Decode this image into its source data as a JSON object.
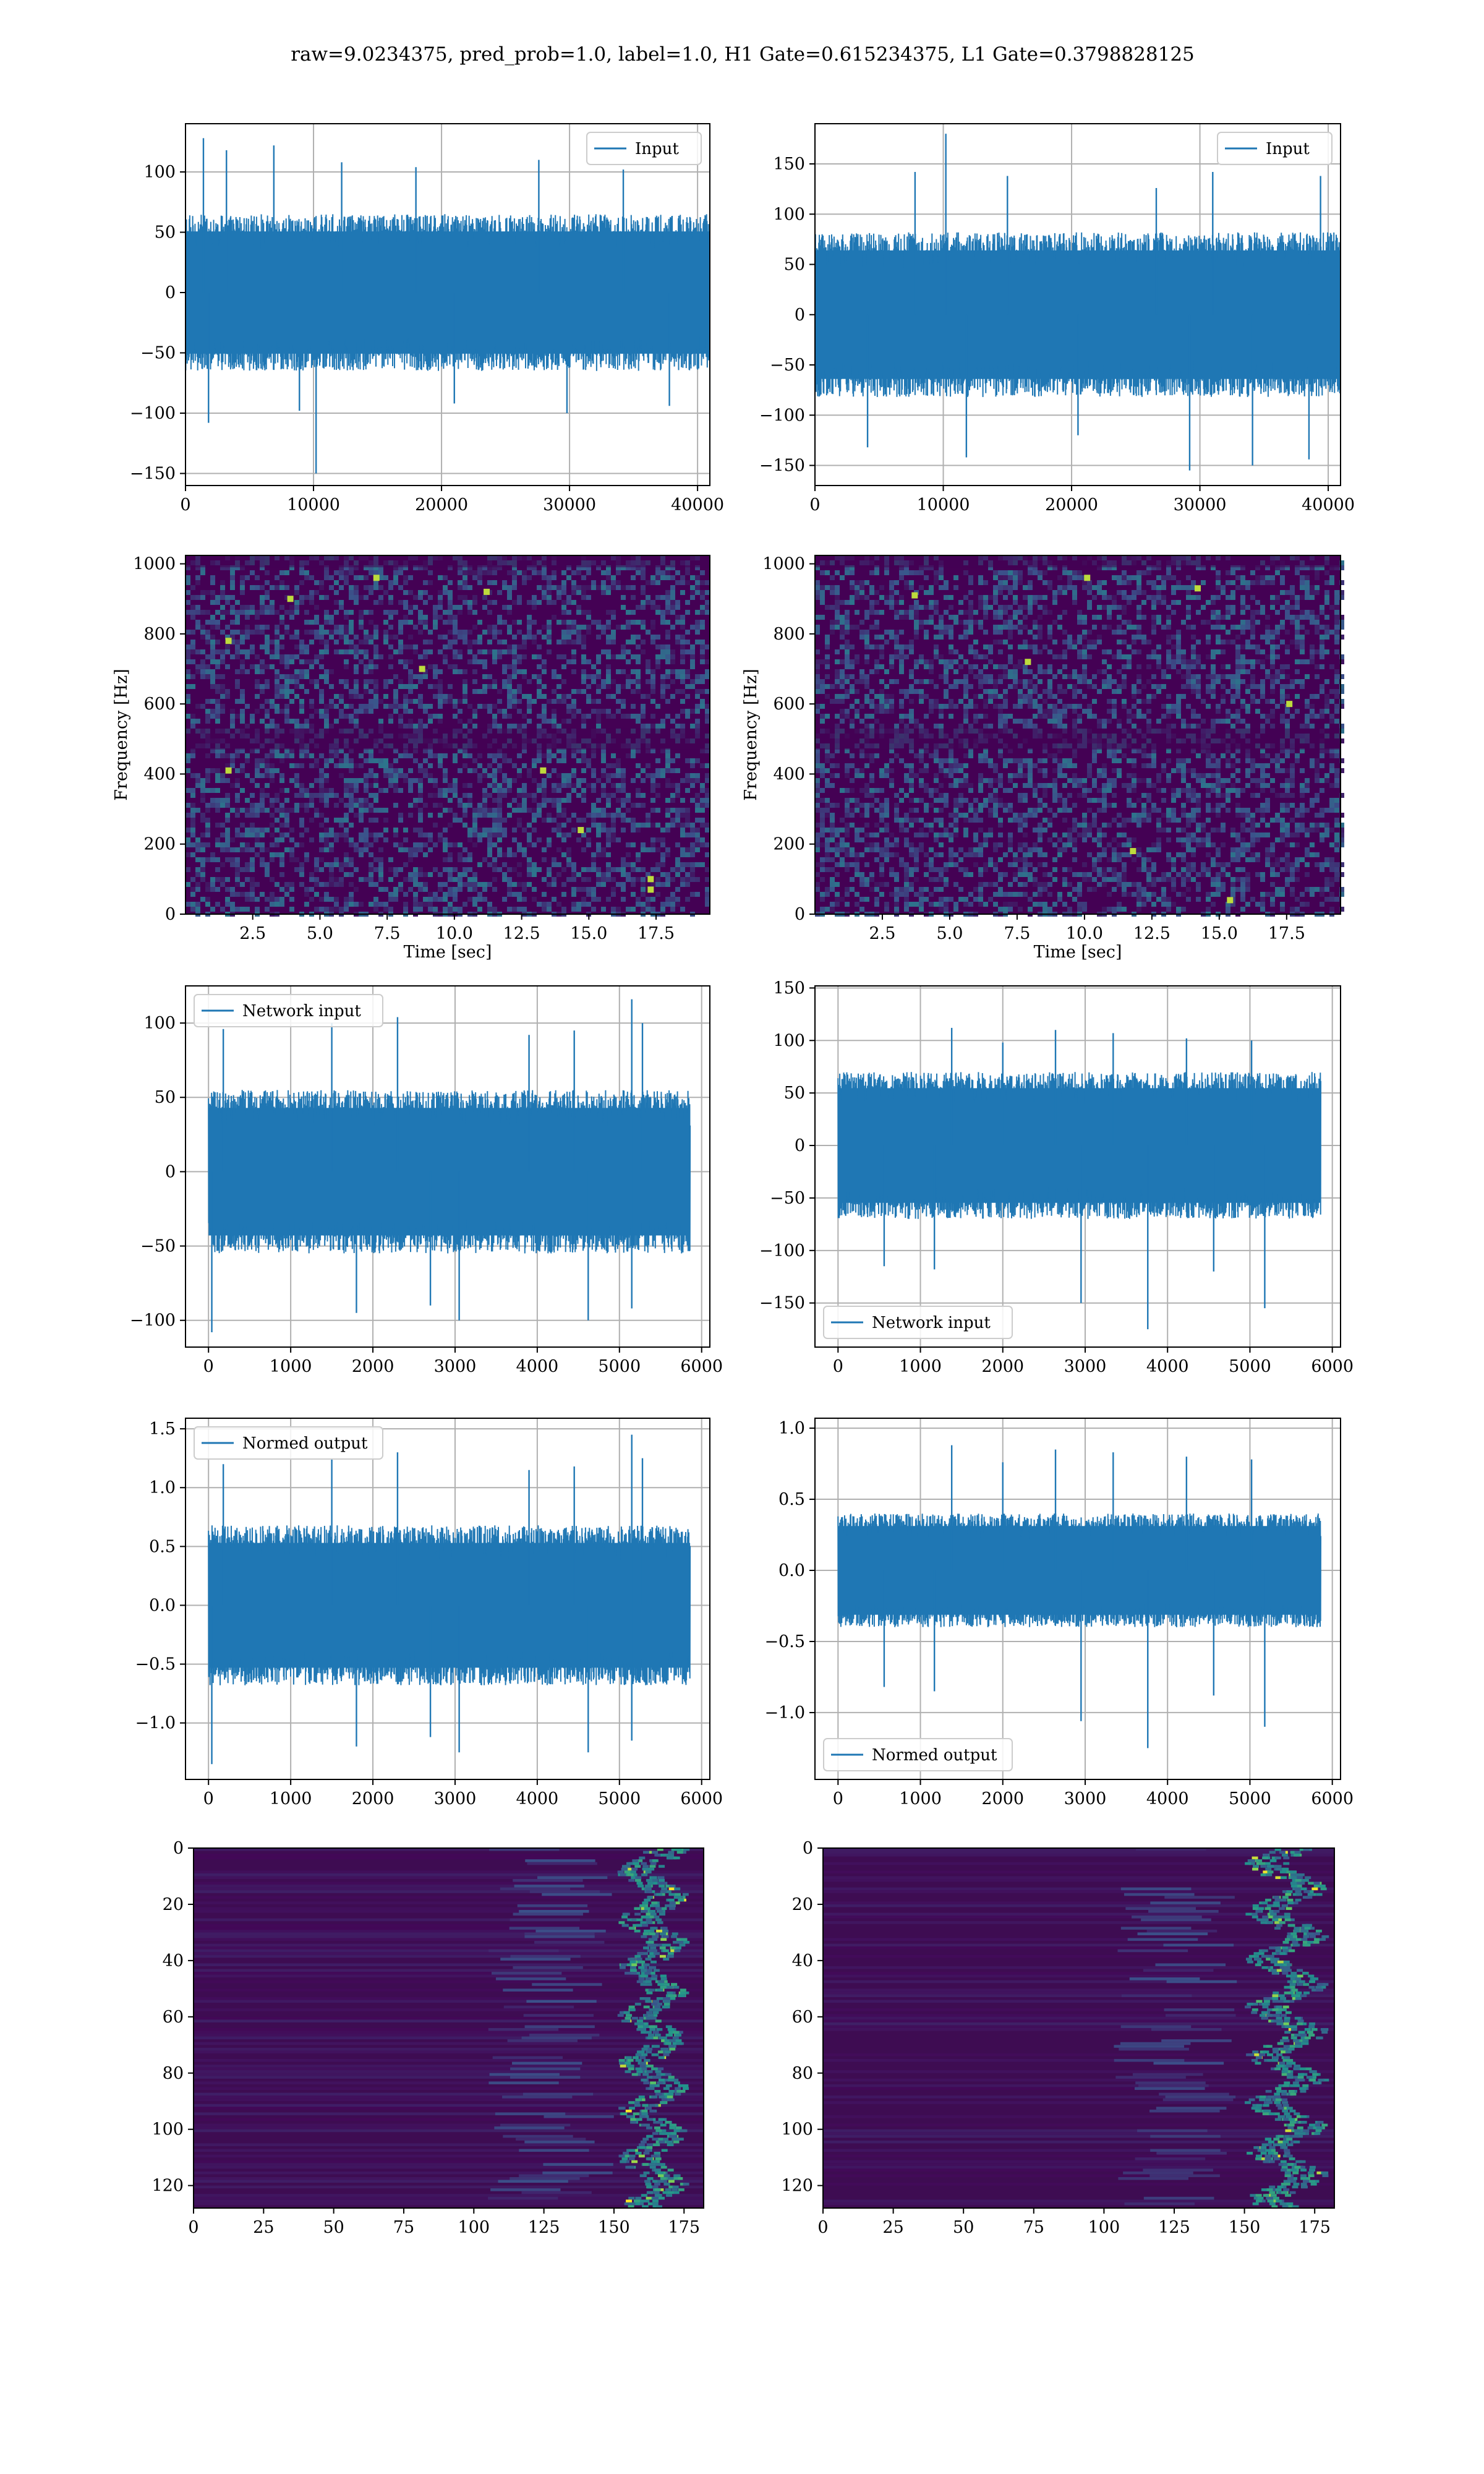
{
  "title": "raw=9.0234375, pred_prob=1.0, label=1.0, H1 Gate=0.615234375, L1 Gate=0.3798828125",
  "colors": {
    "series": "#1f77b4",
    "grid": "#b0b0b0",
    "viridis_dark": "#440154",
    "viridis_mid": "#21918c",
    "viridis_bright": "#fde725"
  },
  "chart_data": [
    {
      "id": "h1-input",
      "type": "line",
      "legend": "Input",
      "legend_loc": "upper-right",
      "xlim": [
        0,
        40960
      ],
      "ylim": [
        -160,
        140
      ],
      "x_ticks": [
        0,
        10000,
        20000,
        30000,
        40000
      ],
      "y_ticks": [
        -150,
        -100,
        -50,
        0,
        50,
        100
      ],
      "band": [
        -65,
        65
      ],
      "spikes": [
        [
          1400,
          128
        ],
        [
          3200,
          118
        ],
        [
          6900,
          122
        ],
        [
          12200,
          108
        ],
        [
          18000,
          104
        ],
        [
          27600,
          110
        ],
        [
          34200,
          102
        ],
        [
          1800,
          -108
        ],
        [
          8900,
          -98
        ],
        [
          10200,
          -150
        ],
        [
          21000,
          -92
        ],
        [
          29800,
          -100
        ],
        [
          37800,
          -94
        ]
      ]
    },
    {
      "id": "l1-input",
      "type": "line",
      "legend": "Input",
      "legend_loc": "upper-right",
      "xlim": [
        0,
        40960
      ],
      "ylim": [
        -170,
        190
      ],
      "x_ticks": [
        0,
        10000,
        20000,
        30000,
        40000
      ],
      "y_ticks": [
        -150,
        -100,
        -50,
        0,
        50,
        100,
        150
      ],
      "band": [
        -82,
        82
      ],
      "spikes": [
        [
          10200,
          180
        ],
        [
          7800,
          142
        ],
        [
          15000,
          138
        ],
        [
          31000,
          142
        ],
        [
          39400,
          138
        ],
        [
          26600,
          126
        ],
        [
          4100,
          -132
        ],
        [
          11800,
          -142
        ],
        [
          29200,
          -155
        ],
        [
          34100,
          -150
        ],
        [
          38500,
          -144
        ],
        [
          20500,
          -120
        ]
      ]
    },
    {
      "id": "h1-spectrogram",
      "type": "heatmap",
      "colormap": "viridis",
      "xlabel": "Time [sec]",
      "ylabel": "Frequency [Hz]",
      "xlim": [
        0,
        19.5
      ],
      "ylim": [
        0,
        1024
      ],
      "x_ticks": [
        2.5,
        5.0,
        7.5,
        10.0,
        12.5,
        15.0,
        17.5
      ],
      "y_ticks": [
        0,
        200,
        400,
        600,
        800,
        1000
      ],
      "hot_spots": [
        [
          17.3,
          70
        ],
        [
          17.3,
          100
        ],
        [
          14.7,
          240
        ],
        [
          1.6,
          780
        ],
        [
          1.6,
          410
        ],
        [
          3.9,
          900
        ],
        [
          7.1,
          960
        ],
        [
          11.2,
          920
        ],
        [
          8.8,
          700
        ],
        [
          13.3,
          410
        ]
      ]
    },
    {
      "id": "l1-spectrogram",
      "type": "heatmap",
      "colormap": "viridis",
      "xlabel": "Time [sec]",
      "ylabel": "Frequency [Hz]",
      "xlim": [
        0,
        19.5
      ],
      "ylim": [
        0,
        1024
      ],
      "x_ticks": [
        2.5,
        5.0,
        7.5,
        10.0,
        12.5,
        15.0,
        17.5
      ],
      "y_ticks": [
        0,
        200,
        400,
        600,
        800,
        1000
      ],
      "hot_spots": [
        [
          3.7,
          910
        ],
        [
          7.9,
          720
        ],
        [
          10.1,
          960
        ],
        [
          15.4,
          40
        ],
        [
          11.8,
          180
        ],
        [
          14.2,
          930
        ],
        [
          17.6,
          600
        ]
      ]
    },
    {
      "id": "h1-network-input",
      "type": "line",
      "legend": "Network input",
      "legend_loc": "upper-left",
      "xlim": [
        -280,
        6100
      ],
      "ylim": [
        -118,
        125
      ],
      "x_ticks": [
        0,
        1000,
        2000,
        3000,
        4000,
        5000,
        6000
      ],
      "y_ticks": [
        -100,
        -50,
        0,
        50,
        100
      ],
      "band": [
        -55,
        55
      ],
      "spikes": [
        [
          180,
          96
        ],
        [
          1500,
          100
        ],
        [
          2300,
          104
        ],
        [
          3900,
          92
        ],
        [
          5150,
          116
        ],
        [
          5280,
          100
        ],
        [
          4450,
          95
        ],
        [
          40,
          -108
        ],
        [
          1800,
          -95
        ],
        [
          3050,
          -100
        ],
        [
          4620,
          -100
        ],
        [
          5150,
          -92
        ],
        [
          2700,
          -90
        ]
      ]
    },
    {
      "id": "l1-network-input",
      "type": "line",
      "legend": "Network input",
      "legend_loc": "lower-left",
      "xlim": [
        -280,
        6100
      ],
      "ylim": [
        -192,
        152
      ],
      "x_ticks": [
        0,
        1000,
        2000,
        3000,
        4000,
        5000,
        6000
      ],
      "y_ticks": [
        -150,
        -100,
        -50,
        0,
        50,
        100,
        150
      ],
      "band": [
        -70,
        70
      ],
      "spikes": [
        [
          1380,
          112
        ],
        [
          2640,
          110
        ],
        [
          3340,
          107
        ],
        [
          4230,
          102
        ],
        [
          5020,
          100
        ],
        [
          2000,
          98
        ],
        [
          3760,
          -175
        ],
        [
          5180,
          -155
        ],
        [
          2950,
          -150
        ],
        [
          1170,
          -118
        ],
        [
          4560,
          -120
        ],
        [
          560,
          -115
        ]
      ]
    },
    {
      "id": "h1-normed-output",
      "type": "line",
      "legend": "Normed output",
      "legend_loc": "upper-left",
      "xlim": [
        -280,
        6100
      ],
      "ylim": [
        -1.48,
        1.59
      ],
      "x_ticks": [
        0,
        1000,
        2000,
        3000,
        4000,
        5000,
        6000
      ],
      "y_ticks": [
        -1.0,
        -0.5,
        0.0,
        0.5,
        1.0,
        1.5
      ],
      "band": [
        -0.68,
        0.68
      ],
      "spikes": [
        [
          180,
          1.2
        ],
        [
          1500,
          1.25
        ],
        [
          2300,
          1.3
        ],
        [
          3900,
          1.15
        ],
        [
          5150,
          1.45
        ],
        [
          5280,
          1.25
        ],
        [
          4450,
          1.18
        ],
        [
          40,
          -1.35
        ],
        [
          1800,
          -1.2
        ],
        [
          3050,
          -1.25
        ],
        [
          4620,
          -1.25
        ],
        [
          5150,
          -1.15
        ],
        [
          2700,
          -1.12
        ]
      ]
    },
    {
      "id": "l1-normed-output",
      "type": "line",
      "legend": "Normed output",
      "legend_loc": "lower-left",
      "xlim": [
        -280,
        6100
      ],
      "ylim": [
        -1.47,
        1.07
      ],
      "x_ticks": [
        0,
        1000,
        2000,
        3000,
        4000,
        5000,
        6000
      ],
      "y_ticks": [
        -1.0,
        -0.5,
        0.0,
        0.5,
        1.0
      ],
      "band": [
        -0.4,
        0.4
      ],
      "spikes": [
        [
          1380,
          0.88
        ],
        [
          2640,
          0.85
        ],
        [
          3340,
          0.83
        ],
        [
          4230,
          0.8
        ],
        [
          5020,
          0.78
        ],
        [
          2000,
          0.76
        ],
        [
          3760,
          -1.25
        ],
        [
          5180,
          -1.1
        ],
        [
          2950,
          -1.06
        ],
        [
          1170,
          -0.85
        ],
        [
          4560,
          -0.88
        ],
        [
          560,
          -0.82
        ]
      ]
    },
    {
      "id": "h1-activations",
      "type": "heatmap",
      "colormap": "viridis",
      "xlim": [
        0,
        182
      ],
      "ylim": [
        128,
        0
      ],
      "x_ticks": [
        0,
        25,
        50,
        75,
        100,
        125,
        150,
        175
      ],
      "y_ticks": [
        0,
        20,
        40,
        60,
        80,
        100,
        120
      ],
      "active_columns": [
        150,
        178
      ]
    },
    {
      "id": "l1-activations",
      "type": "heatmap",
      "colormap": "viridis",
      "xlim": [
        0,
        182
      ],
      "ylim": [
        128,
        0
      ],
      "x_ticks": [
        0,
        25,
        50,
        75,
        100,
        125,
        150,
        175
      ],
      "y_ticks": [
        0,
        20,
        40,
        60,
        80,
        100,
        120
      ],
      "active_columns": [
        148,
        182
      ]
    }
  ]
}
